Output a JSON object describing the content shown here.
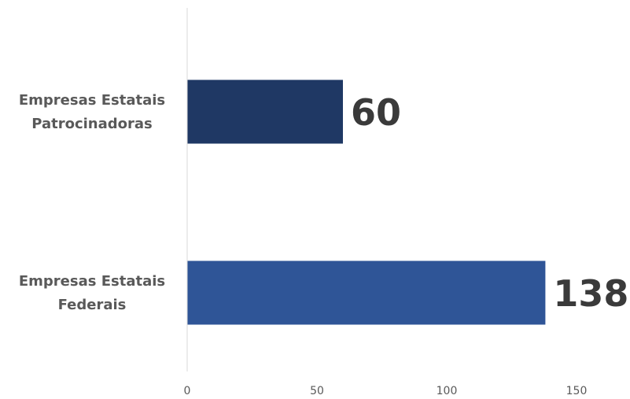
{
  "chart_data": {
    "type": "bar",
    "orientation": "horizontal",
    "title": "",
    "xlabel": "",
    "ylabel": "",
    "categories": [
      [
        "Empresas Estatais",
        "Patrocinadoras"
      ],
      [
        "Empresas Estatais",
        "Federais"
      ]
    ],
    "values": [
      60,
      138
    ],
    "data_labels": [
      "60",
      "138"
    ],
    "xlim": [
      0,
      150
    ],
    "xticks": [
      0,
      50,
      100,
      150
    ],
    "xtick_labels": [
      "0",
      "50",
      "100",
      "150"
    ],
    "grid": false,
    "legend": "none",
    "colors": [
      "#1f3864",
      "#2f5597"
    ],
    "axis_color": "#d9d9d9"
  }
}
